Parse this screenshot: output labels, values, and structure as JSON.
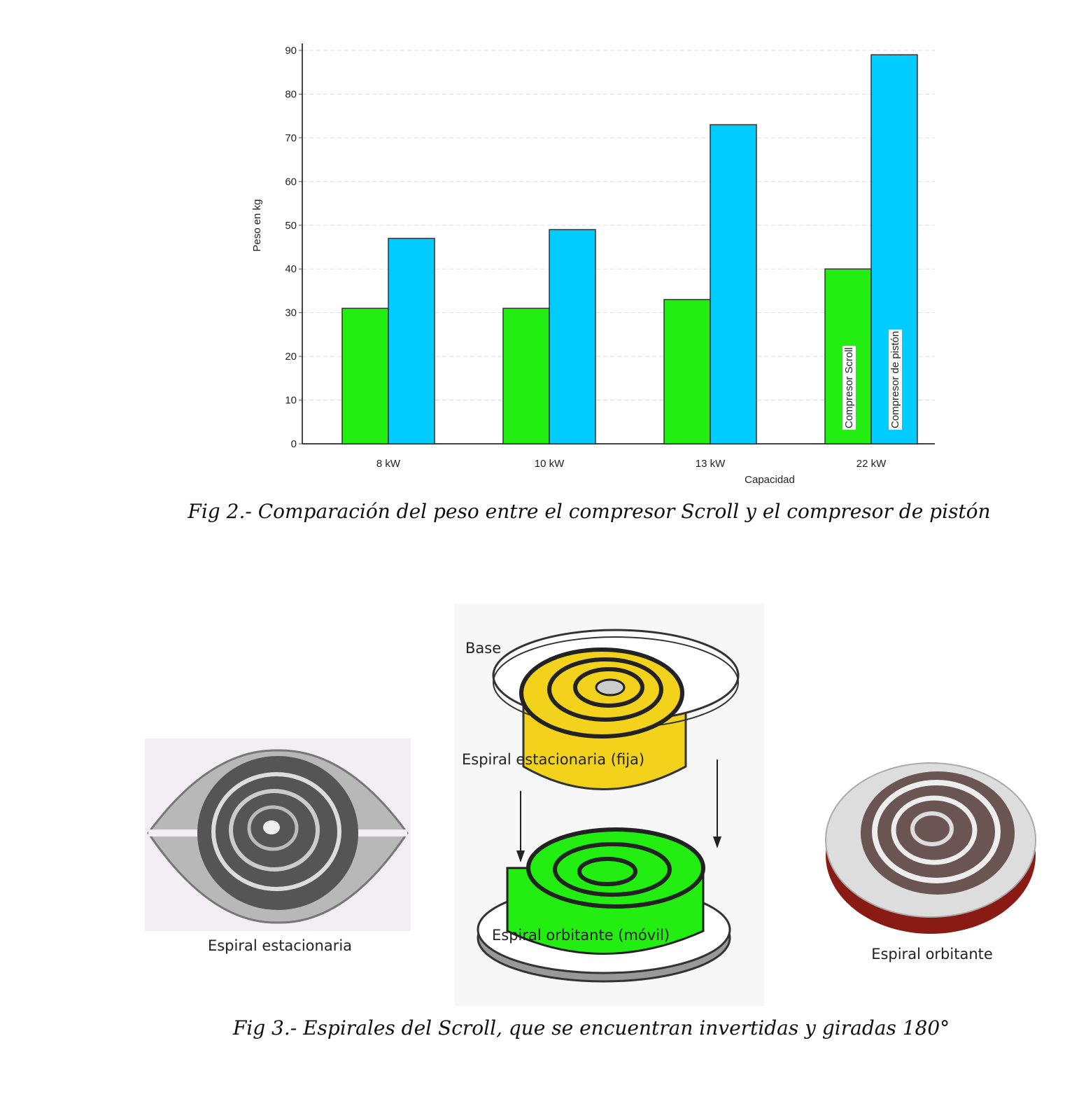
{
  "chart_data": {
    "type": "bar",
    "x_label": "Capacidad",
    "y_label": "Peso en kg",
    "categories": [
      "8 kW",
      "10 kW",
      "13 kW",
      "22 kW"
    ],
    "series": [
      {
        "name": "Compresor Scroll",
        "color": "#22ee11",
        "values": [
          31,
          31,
          33,
          40
        ]
      },
      {
        "name": "Compresor de pistón",
        "color": "#00ccff",
        "values": [
          47,
          49,
          73,
          89
        ]
      }
    ],
    "ylim": [
      0,
      90
    ],
    "yticks": [
      0,
      10,
      20,
      30,
      40,
      50,
      60,
      70,
      80,
      90
    ],
    "grid": true
  },
  "fig2_caption": "Fig 2.- Comparación del peso entre el compresor Scroll y el compresor de pistón",
  "figure3": {
    "left_label": "Espiral estacionaria",
    "center_labels": {
      "base": "Base",
      "fixed": "Espiral estacionaria (fija)",
      "orbiting": "Espiral orbitante (móvil)"
    },
    "right_label": "Espiral orbitante",
    "caption": "Fig 3.- Espirales del Scroll, que se encuentran invertidas y giradas 180°"
  }
}
